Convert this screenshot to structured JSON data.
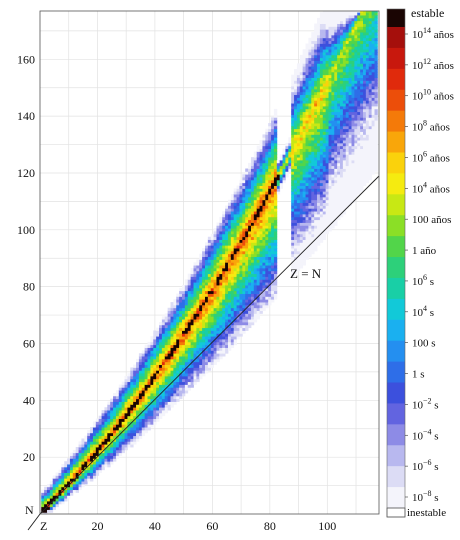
{
  "chart_data": {
    "type": "heatmap",
    "title": "",
    "x_axis": {
      "corner_label": "Z",
      "ticks": [
        20,
        40,
        60,
        80,
        100
      ],
      "range": [
        0,
        118
      ]
    },
    "y_axis": {
      "corner_label": "N",
      "ticks": [
        20,
        40,
        60,
        80,
        100,
        120,
        140,
        160
      ],
      "range": [
        0,
        177
      ]
    },
    "grid": true,
    "diagonal_annotation": {
      "text": "Z = N",
      "x": 40,
      "y": 60
    },
    "colorbar": {
      "position": "right",
      "top_label": "estable",
      "bottom_label": "inestable",
      "tick_labels": [
        {
          "base": "10",
          "exp": "14",
          "unit": " años"
        },
        {
          "base": "10",
          "exp": "12",
          "unit": " años"
        },
        {
          "base": "10",
          "exp": "10",
          "unit": " años"
        },
        {
          "base": "10",
          "exp": "8",
          "unit": " años"
        },
        {
          "base": "10",
          "exp": "6",
          "unit": " años"
        },
        {
          "base": "10",
          "exp": "4",
          "unit": " años"
        },
        {
          "base": "100",
          "exp": "",
          "unit": " años"
        },
        {
          "base": "1",
          "exp": "",
          "unit": " año"
        },
        {
          "base": "10",
          "exp": "6",
          "unit": " s"
        },
        {
          "base": "10",
          "exp": "4",
          "unit": " s"
        },
        {
          "base": "100",
          "exp": "",
          "unit": " s"
        },
        {
          "base": "1",
          "exp": "",
          "unit": " s"
        },
        {
          "base": "10",
          "exp": "−2",
          "unit": " s"
        },
        {
          "base": "10",
          "exp": "−4",
          "unit": " s"
        },
        {
          "base": "10",
          "exp": "−6",
          "unit": " s"
        },
        {
          "base": "10",
          "exp": "−8",
          "unit": " s"
        }
      ],
      "colors": [
        "#f4f4fb",
        "#dcdcf5",
        "#b8b8ef",
        "#8d8be6",
        "#6264e0",
        "#3c50dd",
        "#2e6ee8",
        "#248ff0",
        "#1ab0f0",
        "#12c9d8",
        "#19cfa6",
        "#2dd07a",
        "#52d54a",
        "#8bdf26",
        "#c8e814",
        "#f5eb10",
        "#fad20c",
        "#f9a60a",
        "#f47a09",
        "#ec4e0a",
        "#e02a0c",
        "#c8180d",
        "#a50f0c"
      ],
      "stable_color": "#1a0503"
    }
  }
}
